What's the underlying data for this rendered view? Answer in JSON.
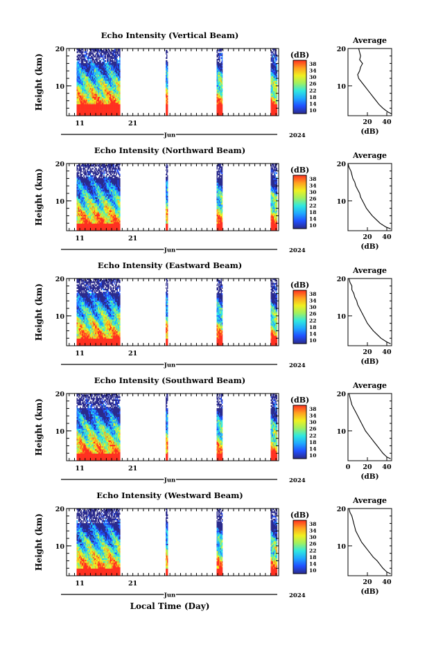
{
  "figure": {
    "month_label": "Jun",
    "year_label": "2024",
    "xlabel": "Local Time (Day)",
    "day_ticks": [
      "11",
      "21"
    ]
  },
  "colorbar": {
    "unit_label": "(dB)",
    "ticks": [
      "38",
      "34",
      "30",
      "26",
      "22",
      "18",
      "14",
      "10"
    ],
    "range_db": [
      10,
      38
    ],
    "colors": [
      "#2a2a8c",
      "#2050ff",
      "#20a8ff",
      "#30e8e0",
      "#a0f060",
      "#f0f020",
      "#ffa020",
      "#ff3020"
    ]
  },
  "chart_data": [
    {
      "type": "heatmap",
      "title": "Echo Intensity (Vertical Beam)",
      "ylabel": "Height (km)",
      "ylim": [
        2,
        20
      ],
      "y_ticks": [
        "20",
        "10"
      ],
      "x_ticks": [
        "11",
        "21"
      ],
      "data_segments_day": [
        [
          10.4,
          18.6
        ],
        [
          27.2,
          27.6
        ],
        [
          36.8,
          37.9
        ],
        [
          47.0,
          48.2
        ]
      ],
      "surface_layer_top_km": 5,
      "average_profile": {
        "title": "Average",
        "xlabel": "(dB)",
        "x_ticks": [
          "20",
          "40"
        ],
        "xlim": [
          0,
          45
        ],
        "ylim": [
          2,
          20
        ],
        "y_ticks": [
          "20",
          "10"
        ],
        "height_km": [
          20,
          19,
          18,
          17,
          16,
          15,
          14,
          13,
          12,
          11,
          10,
          9,
          8,
          7,
          6,
          5,
          4,
          3,
          2.5
        ],
        "db": [
          11,
          12,
          13,
          12,
          15,
          13,
          12,
          10,
          11,
          14,
          17,
          20,
          23,
          26,
          29,
          32,
          36,
          41,
          45
        ]
      }
    },
    {
      "type": "heatmap",
      "title": "Echo Intensity (Northward Beam)",
      "ylabel": "Height (km)",
      "ylim": [
        2,
        20
      ],
      "y_ticks": [
        "20",
        "10"
      ],
      "x_ticks": [
        "11",
        "21"
      ],
      "data_segments_day": [
        [
          10.4,
          18.6
        ],
        [
          27.2,
          27.6
        ],
        [
          36.8,
          37.9
        ],
        [
          47.0,
          48.2
        ]
      ],
      "surface_layer_top_km": 4,
      "average_profile": {
        "title": "Average",
        "xlabel": "(dB)",
        "x_ticks": [
          "20",
          "40"
        ],
        "xlim": [
          0,
          45
        ],
        "ylim": [
          2,
          20
        ],
        "y_ticks": [
          "20",
          "10"
        ],
        "height_km": [
          20,
          19,
          18,
          17,
          16,
          15,
          14,
          13,
          12,
          11,
          10,
          9,
          8,
          7,
          6,
          5,
          4,
          3,
          2.5
        ],
        "db": [
          0,
          1,
          3,
          4,
          5,
          7,
          8,
          10,
          12,
          13,
          15,
          17,
          19,
          22,
          25,
          29,
          33,
          39,
          44
        ]
      }
    },
    {
      "type": "heatmap",
      "title": "Echo Intensity (Eastward Beam)",
      "ylabel": "Height (km)",
      "ylim": [
        2,
        20
      ],
      "y_ticks": [
        "20",
        "10"
      ],
      "x_ticks": [
        "11",
        "21"
      ],
      "data_segments_day": [
        [
          10.4,
          18.6
        ],
        [
          27.2,
          27.6
        ],
        [
          36.8,
          37.9
        ],
        [
          47.0,
          48.2
        ]
      ],
      "surface_layer_top_km": 4,
      "average_profile": {
        "title": "Average",
        "xlabel": "(dB)",
        "x_ticks": [
          "20",
          "40"
        ],
        "xlim": [
          0,
          45
        ],
        "ylim": [
          2,
          20
        ],
        "y_ticks": [
          "20",
          "10"
        ],
        "height_km": [
          20,
          19,
          18,
          17,
          16,
          15,
          14,
          13,
          12,
          11,
          10,
          9,
          8,
          7,
          6,
          5,
          4,
          3,
          2.5
        ],
        "db": [
          1,
          2,
          4,
          4,
          6,
          7,
          9,
          10,
          12,
          14,
          16,
          18,
          20,
          23,
          26,
          30,
          34,
          40,
          44
        ]
      }
    },
    {
      "type": "heatmap",
      "title": "Echo Intensity (Southward Beam)",
      "ylabel": "Height (km)",
      "ylim": [
        2,
        20
      ],
      "y_ticks": [
        "20",
        "10"
      ],
      "x_ticks": [
        "11",
        "21"
      ],
      "data_segments_day": [
        [
          10.4,
          18.6
        ],
        [
          27.2,
          27.6
        ],
        [
          36.8,
          37.9
        ],
        [
          47.0,
          48.2
        ]
      ],
      "surface_layer_top_km": 4,
      "average_profile": {
        "title": "Average",
        "xlabel": "(dB)",
        "x_ticks": [
          "0",
          "20",
          "40"
        ],
        "xlim": [
          0,
          45
        ],
        "ylim": [
          2,
          20
        ],
        "y_ticks": [
          "20",
          "10"
        ],
        "height_km": [
          20,
          19,
          18,
          17,
          16,
          15,
          14,
          13,
          12,
          11,
          10,
          9,
          8,
          7,
          6,
          5,
          4,
          3,
          2.5
        ],
        "db": [
          1,
          2,
          3,
          4,
          6,
          8,
          10,
          12,
          14,
          16,
          18,
          21,
          24,
          27,
          30,
          33,
          36,
          40,
          44
        ]
      }
    },
    {
      "type": "heatmap",
      "title": "Echo Intensity (Westward Beam)",
      "ylabel": "Height (km)",
      "ylim": [
        2,
        20
      ],
      "y_ticks": [
        "20",
        "10"
      ],
      "x_ticks": [
        "11",
        "21"
      ],
      "data_segments_day": [
        [
          10.4,
          18.6
        ],
        [
          27.2,
          27.6
        ],
        [
          36.8,
          37.9
        ],
        [
          47.0,
          48.2
        ]
      ],
      "surface_layer_top_km": 4,
      "average_profile": {
        "title": "Average",
        "xlabel": "(dB)",
        "x_ticks": [
          "20",
          "40"
        ],
        "xlim": [
          0,
          45
        ],
        "ylim": [
          2,
          20
        ],
        "y_ticks": [
          "20",
          "10"
        ],
        "height_km": [
          20,
          19,
          18,
          17,
          16,
          15,
          14,
          13,
          12,
          11,
          10,
          9,
          8,
          7,
          6,
          5,
          4,
          3,
          2.5
        ],
        "db": [
          1,
          2,
          4,
          5,
          6,
          7,
          8,
          10,
          12,
          14,
          17,
          20,
          23,
          26,
          30,
          33,
          36,
          40,
          44
        ]
      }
    }
  ]
}
